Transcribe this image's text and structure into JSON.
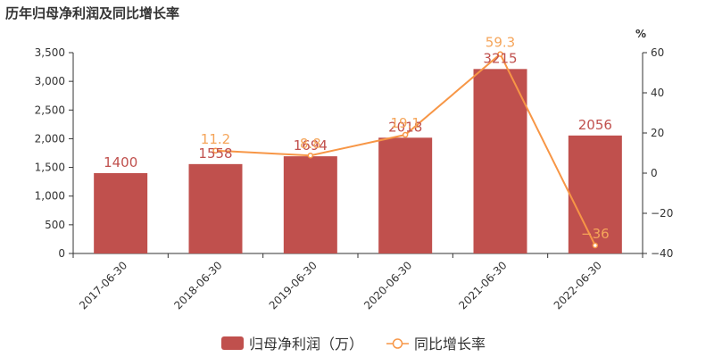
{
  "chart_data": {
    "type": "bar",
    "title": "历年归母净利润及同比增长率",
    "categories": [
      "2017-06-30",
      "2018-06-30",
      "2019-06-30",
      "2020-06-30",
      "2021-06-30",
      "2022-06-30"
    ],
    "series": [
      {
        "name": "归母净利润（万）",
        "type": "bar",
        "axis": "left",
        "values": [
          1400,
          1558,
          1694,
          2018,
          3215,
          2056
        ],
        "labels": [
          "1400",
          "1558",
          "1694",
          "2018",
          "3215",
          "2056"
        ],
        "color": "#c0504d",
        "label_color": "#c0504d"
      },
      {
        "name": "同比增长率",
        "type": "line",
        "axis": "right",
        "values": [
          null,
          11.2,
          8.8,
          19.1,
          59.3,
          -36
        ],
        "labels": [
          "",
          "11.2",
          "8.8",
          "19.1",
          "59.3",
          "−36"
        ],
        "color": "#f79646",
        "label_color": "#f5a55a"
      }
    ],
    "y_left": {
      "min": 0,
      "max": 3500,
      "ticks": [
        0,
        500,
        1000,
        1500,
        2000,
        2500,
        3000,
        3500
      ],
      "tick_labels": [
        "0",
        "500",
        "1,000",
        "1,500",
        "2,000",
        "2,500",
        "3,000",
        "3,500"
      ]
    },
    "y_right": {
      "min": -40,
      "max": 60,
      "unit": "%",
      "ticks": [
        -40,
        -20,
        0,
        20,
        40,
        60
      ],
      "tick_labels": [
        "−40",
        "−20",
        "0",
        "20",
        "40",
        "60"
      ]
    },
    "legend": {
      "placement": "bottom-center"
    },
    "grid": false,
    "colors": {
      "axis": "#333333",
      "bar": "#c0504d",
      "line": "#f79646"
    }
  }
}
